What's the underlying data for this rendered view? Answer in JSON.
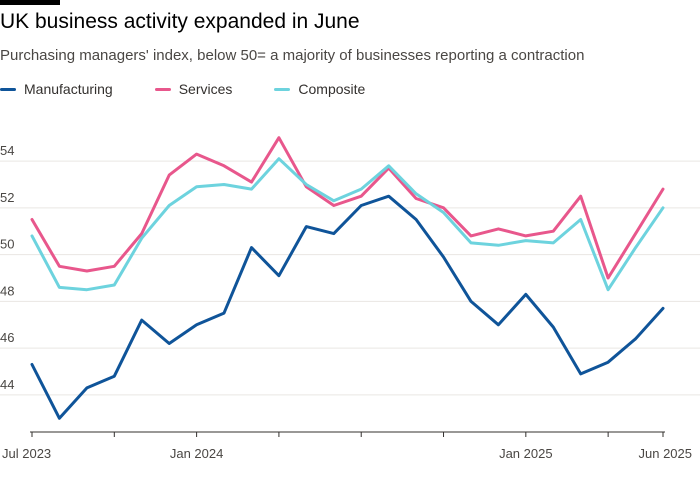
{
  "title": "UK business activity expanded in June",
  "subtitle": "Purchasing managers' index, below 50= a majority of businesses reporting a contraction",
  "colors": {
    "manufacturing": "#0f5499",
    "services": "#e8578c",
    "composite": "#6dd3de",
    "grid": "#e9e6e3",
    "axis": "#33302e"
  },
  "chart_data": {
    "type": "line",
    "title": "UK business activity expanded in June",
    "xlabel": "",
    "ylabel": "",
    "ylim": [
      42.5,
      55.5
    ],
    "yticks": [
      44,
      46,
      48,
      50,
      52,
      54
    ],
    "x": [
      "Jul 2023",
      "Aug 2023",
      "Sep 2023",
      "Oct 2023",
      "Nov 2023",
      "Dec 2023",
      "Jan 2024",
      "Feb 2024",
      "Mar 2024",
      "Apr 2024",
      "May 2024",
      "Jun 2024",
      "Jul 2024",
      "Aug 2024",
      "Sep 2024",
      "Oct 2024",
      "Nov 2024",
      "Dec 2024",
      "Jan 2025",
      "Feb 2025",
      "Mar 2025",
      "Apr 2025",
      "May 2025",
      "Jun 2025"
    ],
    "xtick_labels": [
      {
        "index": 0,
        "label": "Jul 2023"
      },
      {
        "index": 6,
        "label": "Jan 2024"
      },
      {
        "index": 18,
        "label": "Jan 2025"
      },
      {
        "index": 23,
        "label": "Jun 2025"
      }
    ],
    "legend_position": "top-left",
    "grid": true,
    "series": [
      {
        "name": "Manufacturing",
        "color": "#0f5499",
        "values": [
          45.3,
          43.0,
          44.3,
          44.8,
          47.2,
          46.2,
          47.0,
          47.5,
          50.3,
          49.1,
          51.2,
          50.9,
          52.1,
          52.5,
          51.5,
          49.9,
          48.0,
          47.0,
          48.3,
          46.9,
          44.9,
          45.4,
          46.4,
          47.7
        ]
      },
      {
        "name": "Services",
        "color": "#e8578c",
        "values": [
          51.5,
          49.5,
          49.3,
          49.5,
          50.9,
          53.4,
          54.3,
          53.8,
          53.1,
          55.0,
          52.9,
          52.1,
          52.5,
          53.7,
          52.4,
          52.0,
          50.8,
          51.1,
          50.8,
          51.0,
          52.5,
          49.0,
          50.9,
          52.8
        ]
      },
      {
        "name": "Composite",
        "color": "#6dd3de",
        "values": [
          50.8,
          48.6,
          48.5,
          48.7,
          50.7,
          52.1,
          52.9,
          53.0,
          52.8,
          54.1,
          53.0,
          52.3,
          52.8,
          53.8,
          52.6,
          51.8,
          50.5,
          50.4,
          50.6,
          50.5,
          51.5,
          48.5,
          50.3,
          52.0
        ]
      }
    ]
  }
}
